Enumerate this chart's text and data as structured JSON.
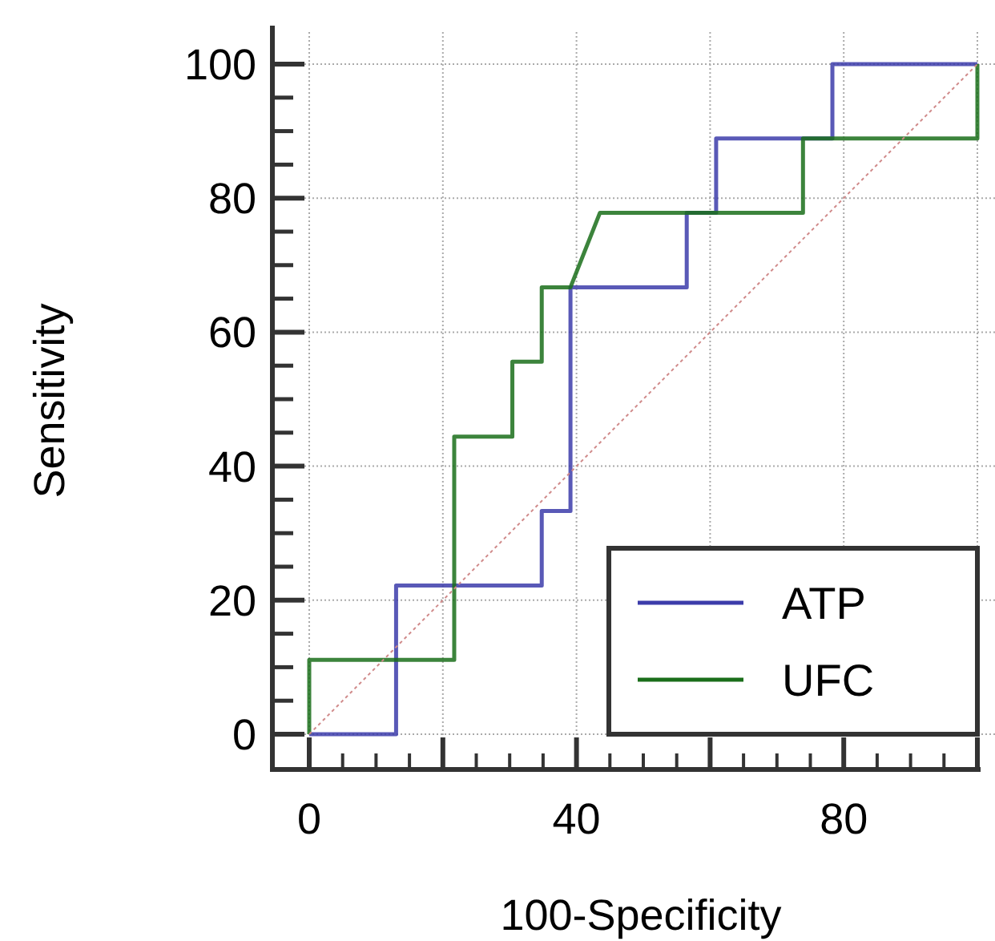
{
  "chart_data": {
    "type": "line",
    "xlabel": "100-Specificity",
    "ylabel": "Sensitivity",
    "xlim": [
      0,
      100
    ],
    "ylim": [
      0,
      100
    ],
    "xticks": [
      0,
      {
        "value": 5,
        "label": null
      },
      {
        "value": 10,
        "label": null
      },
      {
        "value": 15,
        "label": null
      },
      {
        "value": 20,
        "label": null
      },
      {
        "value": 25,
        "label": null
      },
      {
        "value": 30,
        "label": null
      },
      {
        "value": 35,
        "label": null
      },
      40,
      {
        "value": 45,
        "label": null
      },
      {
        "value": 50,
        "label": null
      },
      {
        "value": 55,
        "label": null
      },
      {
        "value": 60,
        "label": null
      },
      {
        "value": 65,
        "label": null
      },
      {
        "value": 70,
        "label": null
      },
      {
        "value": 75,
        "label": null
      },
      80,
      {
        "value": 85,
        "label": null
      },
      {
        "value": 90,
        "label": null
      },
      {
        "value": 95,
        "label": null
      },
      {
        "value": 100,
        "label": null
      }
    ],
    "yticks": [
      0,
      {
        "value": 5,
        "label": null
      },
      {
        "value": 10,
        "label": null
      },
      {
        "value": 15,
        "label": null
      },
      20,
      {
        "value": 25,
        "label": null
      },
      {
        "value": 30,
        "label": null
      },
      {
        "value": 35,
        "label": null
      },
      40,
      {
        "value": 45,
        "label": null
      },
      {
        "value": 50,
        "label": null
      },
      {
        "value": 55,
        "label": null
      },
      60,
      {
        "value": 65,
        "label": null
      },
      {
        "value": 70,
        "label": null
      },
      {
        "value": 75,
        "label": null
      },
      80,
      {
        "value": 85,
        "label": null
      },
      {
        "value": 90,
        "label": null
      },
      {
        "value": 95,
        "label": null
      },
      100
    ],
    "grid": true,
    "legend": "bottom right",
    "marker": "none",
    "line_style": "solid",
    "series": [
      {
        "name": "ATP",
        "color": "#3c3caa",
        "x": [
          0,
          13,
          13,
          34.8,
          34.8,
          39.1,
          39.1,
          56.5,
          56.5,
          60.9,
          60.9,
          78.3,
          78.3,
          100
        ],
        "values": [
          0,
          0,
          22.2,
          22.2,
          33.3,
          33.3,
          66.7,
          66.7,
          77.8,
          77.8,
          88.9,
          88.9,
          100,
          100
        ]
      },
      {
        "name": "UFC",
        "color": "#1a6e1a",
        "x": [
          0,
          0,
          21.7,
          21.7,
          30.4,
          30.4,
          34.8,
          34.8,
          39.1,
          43.5,
          73.9,
          73.9,
          100,
          100
        ],
        "values": [
          0,
          11.1,
          11.1,
          44.4,
          44.4,
          55.6,
          55.6,
          66.7,
          66.7,
          77.8,
          77.8,
          88.9,
          88.9,
          100
        ]
      },
      {
        "color": "#d08a8a",
        "line_style": "dotted",
        "x": [
          0,
          100
        ],
        "values": [
          0,
          100
        ]
      }
    ]
  }
}
